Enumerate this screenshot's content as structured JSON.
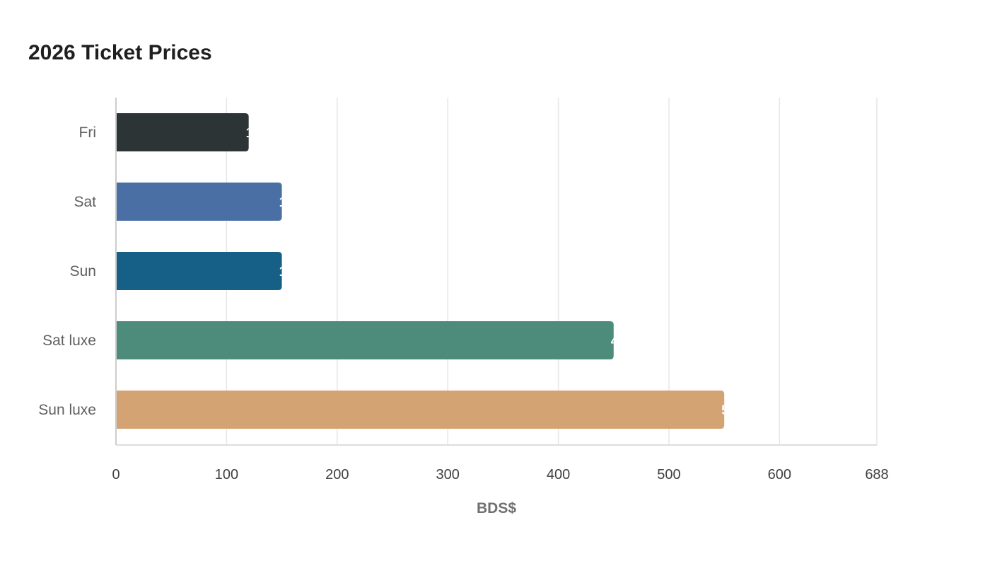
{
  "chart_data": {
    "type": "bar",
    "orientation": "horizontal",
    "title": "2026 Ticket Prices",
    "xlabel": "BDS$",
    "ylabel": "",
    "categories": [
      "Fri",
      "Sat",
      "Sun",
      "Sat luxe",
      "Sun luxe"
    ],
    "values": [
      120,
      150,
      150,
      450,
      550
    ],
    "colors": [
      "#2d3436",
      "#4a6fa5",
      "#166088",
      "#4d8b7a",
      "#d4a373"
    ],
    "xlim": [
      0,
      688
    ],
    "xticks": [
      "0",
      "100",
      "200",
      "300",
      "400",
      "500",
      "600",
      "688"
    ],
    "grid": true,
    "legend": "none"
  }
}
